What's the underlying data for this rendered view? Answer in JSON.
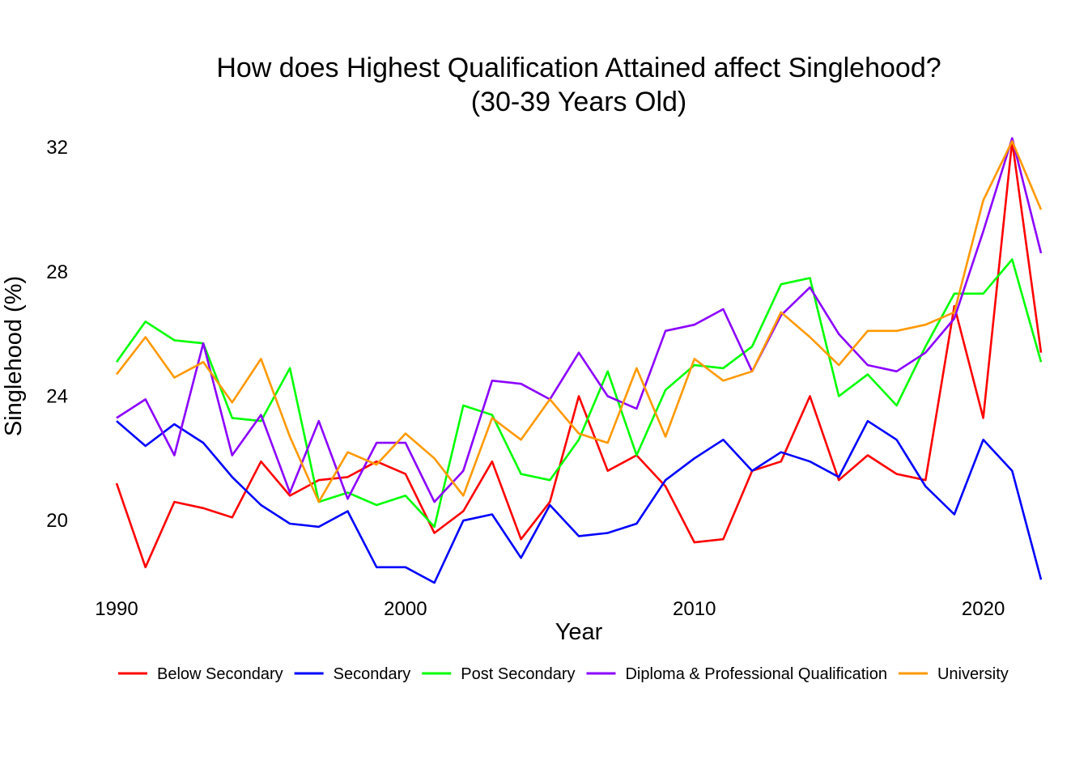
{
  "chart_data": {
    "type": "line",
    "title": "How does Highest Qualification Attained affect Singlehood?",
    "subtitle": "(30-39 Years Old)",
    "xlabel": "Year",
    "ylabel": "Singlehood (%)",
    "xlim": [
      1990,
      2022
    ],
    "ylim": [
      18,
      32.5
    ],
    "xticks": [
      1990,
      2000,
      2010,
      2020
    ],
    "yticks": [
      20,
      24,
      28,
      32
    ],
    "grid": false,
    "legend_position": "bottom",
    "x": [
      1990,
      1991,
      1992,
      1993,
      1994,
      1995,
      1996,
      1997,
      1998,
      1999,
      2000,
      2001,
      2002,
      2003,
      2004,
      2005,
      2006,
      2007,
      2008,
      2009,
      2010,
      2011,
      2012,
      2013,
      2014,
      2015,
      2016,
      2017,
      2018,
      2019,
      2020,
      2021,
      2022
    ],
    "series": [
      {
        "name": "Below Secondary",
        "color": "#ff0000",
        "values": [
          21.2,
          18.5,
          20.6,
          20.4,
          20.1,
          21.9,
          20.8,
          21.3,
          21.4,
          21.9,
          21.5,
          19.6,
          20.3,
          21.9,
          19.4,
          20.6,
          24.0,
          21.6,
          22.1,
          21.1,
          19.3,
          19.4,
          21.6,
          21.9,
          24.0,
          21.3,
          22.1,
          21.5,
          21.3,
          26.9,
          23.3,
          32.2,
          25.4
        ]
      },
      {
        "name": "Secondary",
        "color": "#0000ff",
        "values": [
          23.2,
          22.4,
          23.1,
          22.5,
          21.4,
          20.5,
          19.9,
          19.8,
          20.3,
          18.5,
          18.5,
          18.0,
          20.0,
          20.2,
          18.8,
          20.5,
          19.5,
          19.6,
          19.9,
          21.3,
          22.0,
          22.6,
          21.6,
          22.2,
          21.9,
          21.4,
          23.2,
          22.6,
          21.1,
          20.2,
          22.6,
          21.6,
          18.1
        ]
      },
      {
        "name": "Post Secondary",
        "color": "#00ff00",
        "values": [
          25.1,
          26.4,
          25.8,
          25.7,
          23.3,
          23.2,
          24.9,
          20.6,
          20.9,
          20.5,
          20.8,
          19.8,
          23.7,
          23.4,
          21.5,
          21.3,
          22.6,
          24.8,
          22.1,
          24.2,
          25.0,
          24.9,
          25.6,
          27.6,
          27.8,
          24.0,
          24.7,
          23.7,
          25.6,
          27.3,
          27.3,
          28.4,
          25.1
        ]
      },
      {
        "name": "Diploma & Professional Qualification",
        "color": "#8b00ff",
        "values": [
          23.3,
          23.9,
          22.1,
          25.7,
          22.1,
          23.4,
          20.9,
          23.2,
          20.7,
          22.5,
          22.5,
          20.6,
          21.6,
          24.5,
          24.4,
          23.9,
          25.4,
          24.0,
          23.6,
          26.1,
          26.3,
          26.8,
          24.8,
          26.6,
          27.5,
          26.0,
          25.0,
          24.8,
          25.4,
          26.5,
          29.3,
          32.3,
          28.6
        ]
      },
      {
        "name": "University",
        "color": "#ff9900",
        "values": [
          24.7,
          25.9,
          24.6,
          25.1,
          23.8,
          25.2,
          22.7,
          20.6,
          22.2,
          21.8,
          22.8,
          22.0,
          20.8,
          23.3,
          22.6,
          23.9,
          22.8,
          22.5,
          24.9,
          22.7,
          25.2,
          24.5,
          24.8,
          26.7,
          25.9,
          25.0,
          26.1,
          26.1,
          26.3,
          26.7,
          30.3,
          32.2,
          30.0
        ]
      }
    ]
  }
}
